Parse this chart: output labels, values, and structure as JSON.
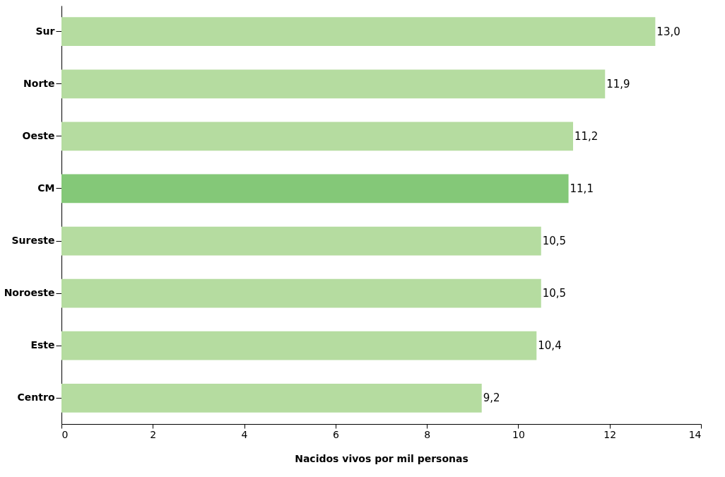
{
  "chart_data": {
    "type": "bar",
    "orientation": "horizontal",
    "xlabel": "Nacidos vivos por mil personas",
    "categories": [
      "Sur",
      "Norte",
      "Oeste",
      "CM",
      "Sureste",
      "Noroeste",
      "Este",
      "Centro"
    ],
    "values": [
      13.0,
      11.9,
      11.2,
      11.1,
      10.5,
      10.5,
      10.4,
      9.2
    ],
    "colors": [
      "#b5dca0",
      "#b5dca0",
      "#b5dca0",
      "#84c878",
      "#b5dca0",
      "#b5dca0",
      "#b5dca0",
      "#b5dca0"
    ],
    "value_labels": [
      "13,0",
      "11,9",
      "11,2",
      "11,1",
      "10,5",
      "10,5",
      "10,4",
      "9,2"
    ],
    "xlim": [
      0,
      14
    ],
    "xticks": [
      0,
      2,
      4,
      6,
      8,
      10,
      12,
      14
    ],
    "grid": false
  }
}
